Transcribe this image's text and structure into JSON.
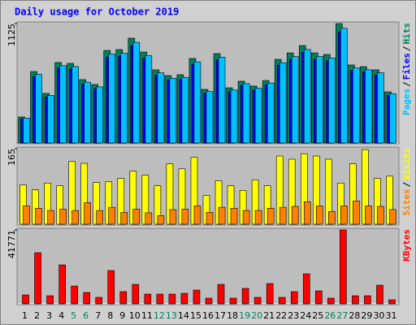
{
  "title": "Daily usage for October 2019",
  "legend_separator": "/",
  "categories": [
    "1",
    "2",
    "3",
    "4",
    "5",
    "6",
    "7",
    "8",
    "9",
    "10",
    "11",
    "12",
    "13",
    "14",
    "15",
    "16",
    "17",
    "18",
    "19",
    "20",
    "21",
    "22",
    "23",
    "24",
    "25",
    "26",
    "27",
    "28",
    "29",
    "30",
    "31"
  ],
  "category_colors": [
    "#000000",
    "#000000",
    "#000000",
    "#000000",
    "#00805c",
    "#00805c",
    "#000000",
    "#000000",
    "#000000",
    "#000000",
    "#000000",
    "#00805c",
    "#00805c",
    "#000000",
    "#000000",
    "#000000",
    "#000000",
    "#000000",
    "#00805c",
    "#00805c",
    "#000000",
    "#000000",
    "#000000",
    "#000000",
    "#000000",
    "#00805c",
    "#00805c",
    "#000000",
    "#000000",
    "#000000",
    "#000000"
  ],
  "chart_data": [
    {
      "type": "bar",
      "ylim": [
        0,
        1125
      ],
      "yticks": [
        1125
      ],
      "series": [
        {
          "name": "Hits",
          "color": "#00805c",
          "values": [
            245,
            673,
            467,
            758,
            750,
            597,
            551,
            872,
            880,
            987,
            857,
            689,
            635,
            643,
            796,
            505,
            842,
            520,
            582,
            536,
            589,
            788,
            849,
            918,
            849,
            834,
            1125,
            735,
            719,
            689,
            482
          ]
        },
        {
          "name": "Files",
          "color": "#0000ff",
          "values": [
            228,
            626,
            434,
            705,
            698,
            555,
            512,
            811,
            818,
            918,
            797,
            641,
            591,
            598,
            740,
            470,
            783,
            484,
            541,
            498,
            548,
            733,
            790,
            854,
            790,
            776,
            1046,
            684,
            669,
            641,
            448
          ]
        },
        {
          "name": "Pages",
          "color": "#00c0ff",
          "values": [
            235,
            646,
            448,
            728,
            720,
            573,
            529,
            837,
            845,
            948,
            823,
            661,
            610,
            617,
            764,
            485,
            808,
            499,
            559,
            515,
            565,
            756,
            815,
            881,
            815,
            801,
            1080,
            706,
            690,
            661,
            463
          ]
        }
      ]
    },
    {
      "type": "bar",
      "ylim": [
        0,
        165
      ],
      "yticks": [
        165
      ],
      "series": [
        {
          "name": "Visits",
          "color": "#ffff00",
          "values": [
            86,
            75,
            90,
            84,
            137,
            133,
            91,
            93,
            100,
            116,
            107,
            84,
            132,
            121,
            146,
            63,
            95,
            84,
            74,
            97,
            84,
            149,
            142,
            154,
            149,
            142,
            90,
            132,
            163,
            100,
            105
          ]
        },
        {
          "name": "Sites",
          "color": "#ff8000",
          "values": [
            40,
            35,
            30,
            33,
            30,
            47,
            30,
            37,
            26,
            33,
            25,
            19,
            32,
            33,
            40,
            26,
            37,
            35,
            30,
            30,
            35,
            37,
            39,
            49,
            40,
            28,
            40,
            51,
            40,
            39,
            32
          ]
        }
      ]
    },
    {
      "type": "bar",
      "ylim": [
        0,
        41771
      ],
      "yticks": [
        41771
      ],
      "series": [
        {
          "name": "KBytes",
          "color": "#ff0000",
          "values": [
            5049,
            28918,
            4590,
            22033,
            10098,
            6426,
            3672,
            18820,
            6885,
            11016,
            5508,
            5508,
            5508,
            5967,
            7803,
            3213,
            11016,
            3213,
            8721,
            3672,
            11475,
            3672,
            6885,
            16984,
            7344,
            3213,
            41771,
            4590,
            4590,
            10557,
            2295
          ]
        }
      ]
    }
  ]
}
